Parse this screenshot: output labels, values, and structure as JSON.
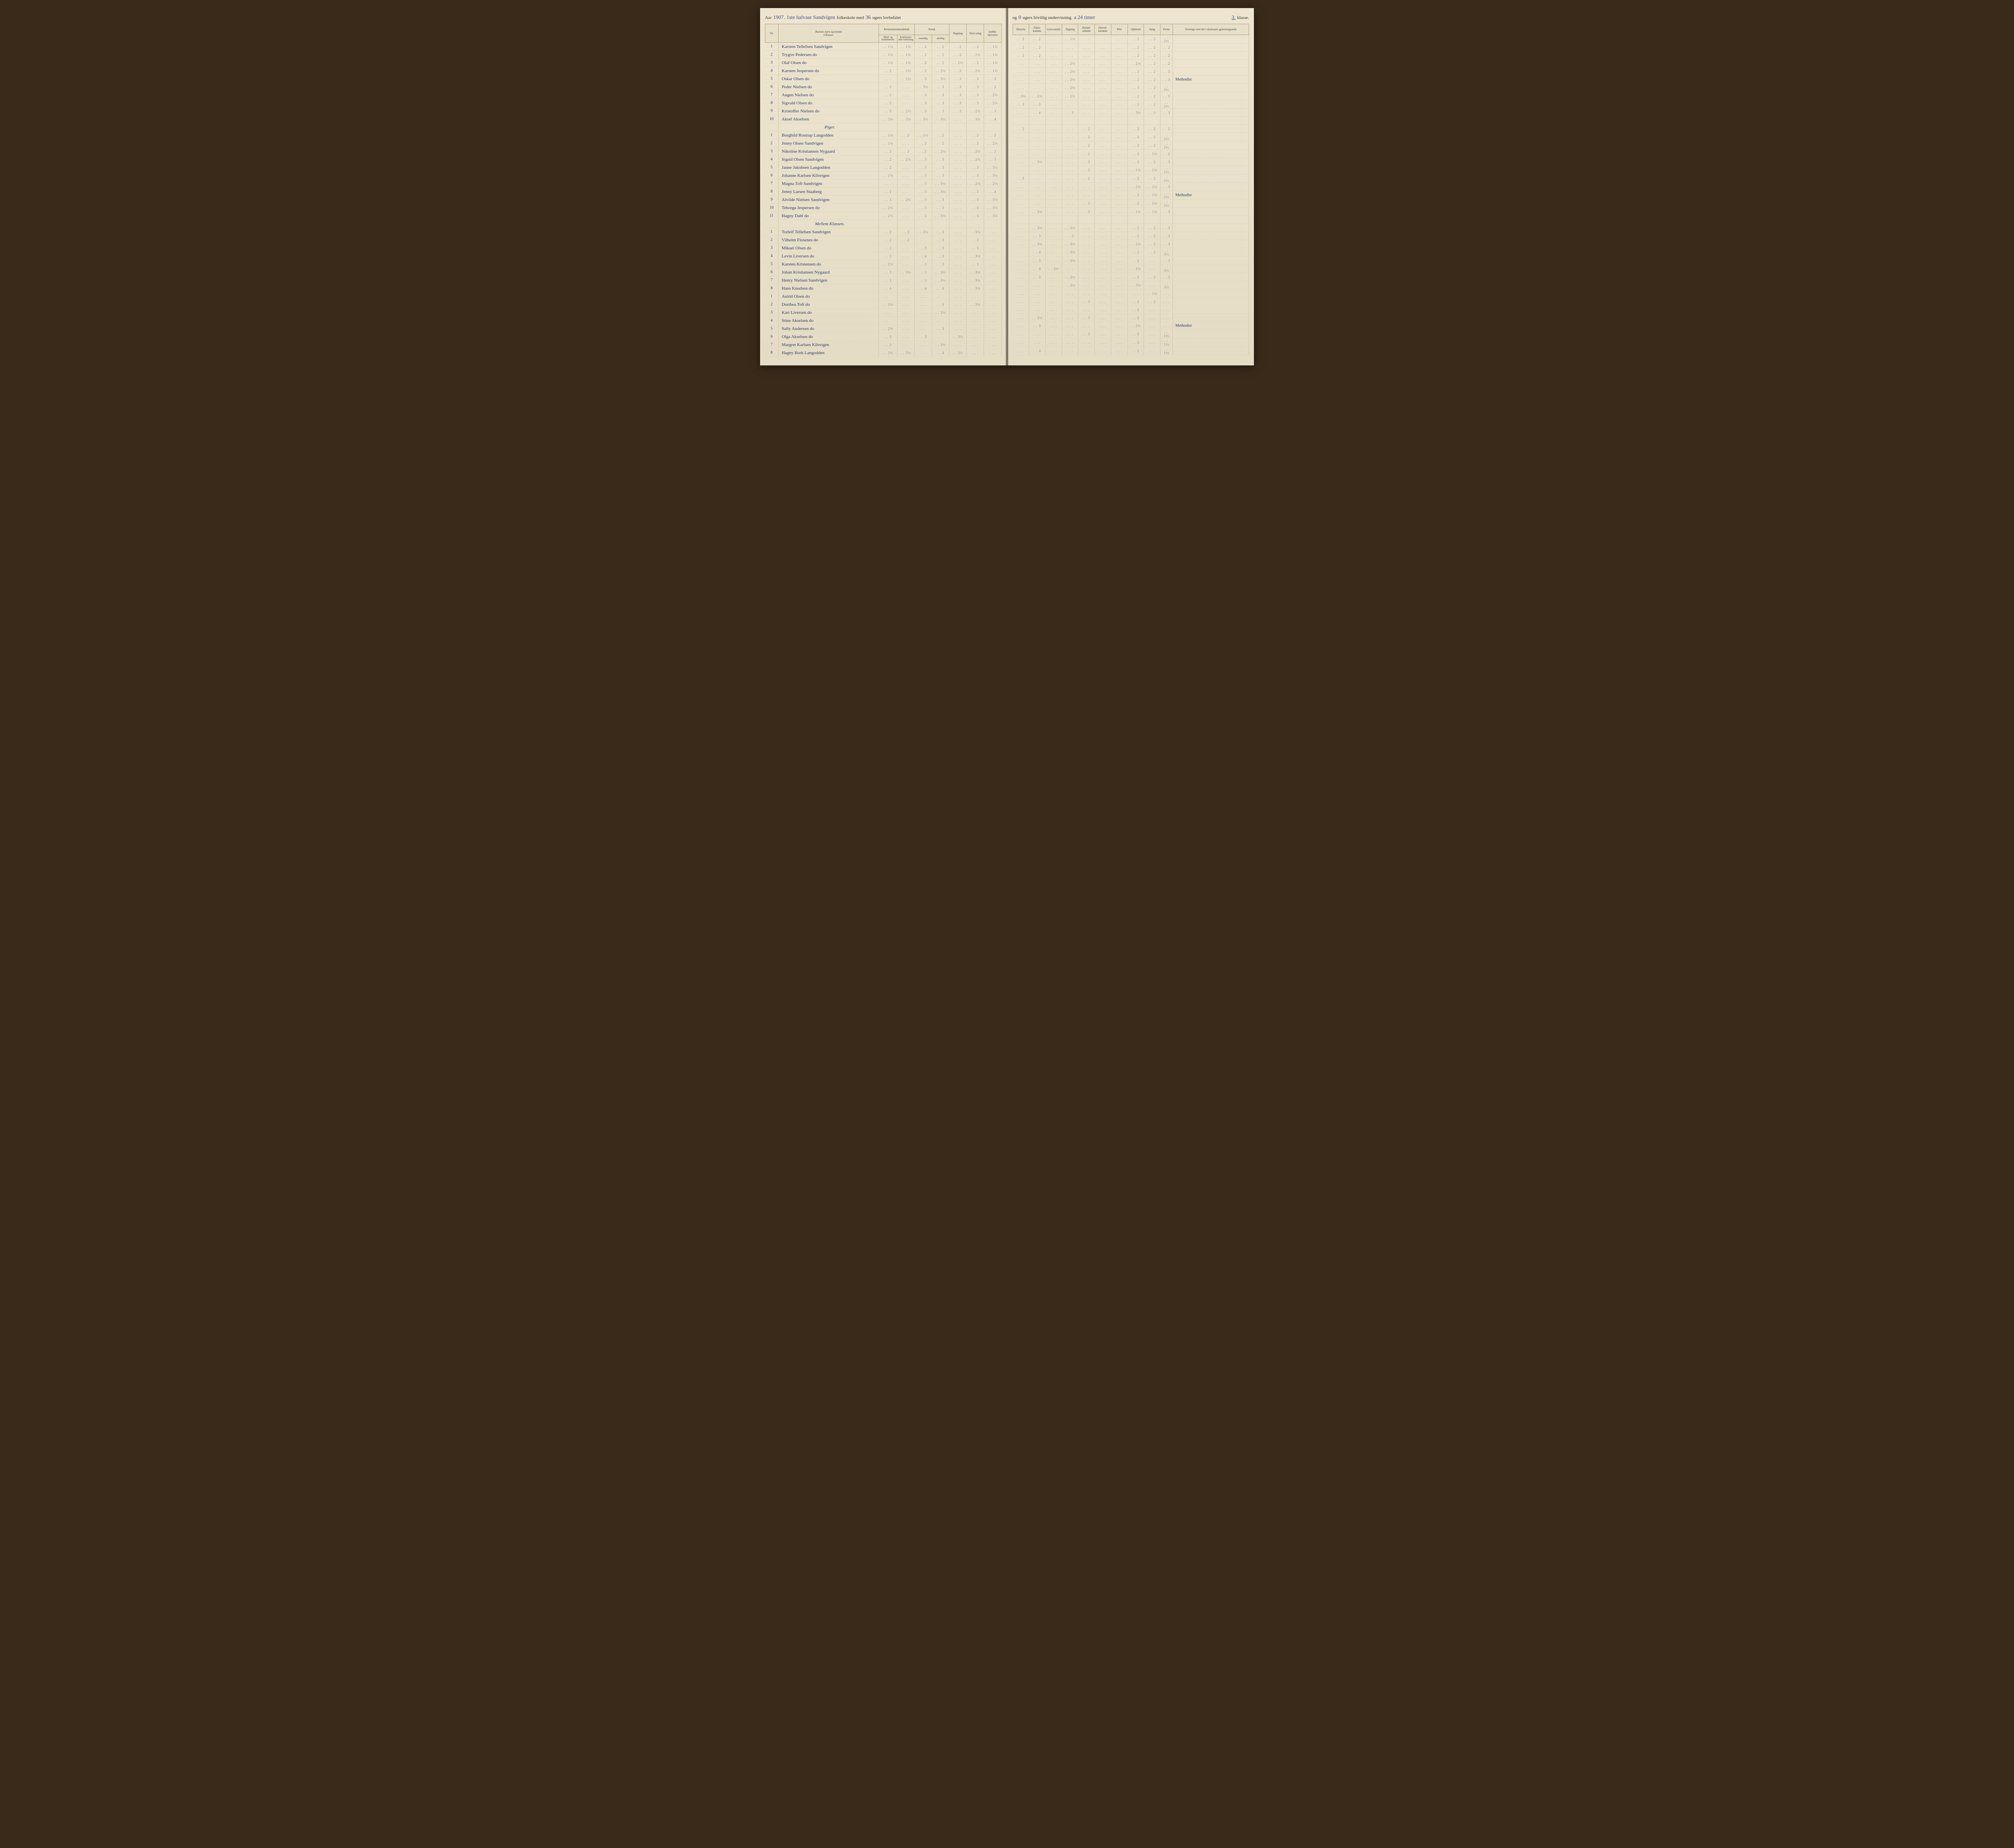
{
  "header": {
    "aar_label": "Aar",
    "aar_value": "1907.",
    "halvaar": "1ste halvaar Sandvigen",
    "skole_label": "folkeskole med",
    "uger_lov": "36",
    "lov_label": "ugers lovbefalet",
    "og": "og",
    "uger_friv": "0",
    "friv_label": "ugers frivillig undervisning.",
    "timer": "a 24 timer",
    "klasse_value": "3.",
    "klasse_label": "klasse."
  },
  "columns_left": {
    "nr": "Nr.",
    "navn": "Barnets navn og bosted",
    "klasse_sub": "3 Klasse.",
    "kristendom": "Kristendomskundskab",
    "bibel": "Bibel- og Kirkehistorie",
    "katekisme": "Katekismus eller forklaring",
    "norsk": "Norsk",
    "mundtlig": "mundtlig",
    "skriftlig": "skriftlig",
    "regning": "Regning",
    "skrivning": "Skriv-ning",
    "jordb": "Jordbe-skrivelse"
  },
  "columns_right": {
    "historie": "Historie",
    "natur": "Natur-kundsk.",
    "gym": "Gym-nastik",
    "tegning": "Tegning",
    "haand": "Haand-arbeide",
    "hoved": "Hoved-karakter",
    "flid": "Flid",
    "opforsel": "Opførsel",
    "sang": "Sang",
    "evner": "Evner",
    "oversigt": "Oversigt over det i skoleaaret gjennemgaaede"
  },
  "sections": [
    {
      "label": "",
      "rows": [
        {
          "nr": "1",
          "name": "Karsten Tellefsen Sandvigen",
          "g": [
            "1½",
            "1½",
            "2",
            "2",
            "2",
            "2",
            "1½"
          ],
          "r": [
            "2",
            "2",
            "",
            "1½",
            "",
            "",
            "",
            "2",
            "2",
            "2½",
            "2",
            ""
          ]
        },
        {
          "nr": "2",
          "name": "Trygve Pedersen          do",
          "g": [
            "1½",
            "1½",
            "2",
            "2",
            "2",
            "1½",
            "1½"
          ],
          "r": [
            "2",
            "2",
            "",
            "",
            "",
            "",
            "",
            "2",
            "2",
            "2",
            "2½",
            ""
          ]
        },
        {
          "nr": "3",
          "name": "Olaf Olsen               do",
          "g": [
            "1½",
            "1½",
            "2",
            "2",
            "1½",
            "2",
            "1½"
          ],
          "r": [
            "2",
            "2",
            "",
            "",
            "",
            "",
            "",
            "2",
            "2",
            "2",
            "2",
            ""
          ]
        },
        {
          "nr": "4",
          "name": "Karsten Jespersen        do",
          "g": [
            "2",
            "2½",
            "2",
            "2½",
            "2",
            "2½",
            "1½"
          ],
          "r": [
            "",
            "",
            "",
            "2½",
            "",
            "",
            "",
            "2½",
            "2",
            "2",
            "2",
            ""
          ]
        },
        {
          "nr": "5",
          "name": "Oskar Olsen              do",
          "g": [
            "",
            "2½",
            "3",
            "3½",
            "3",
            "3",
            "3"
          ],
          "r": [
            "",
            "",
            "",
            "2½",
            "",
            "",
            "",
            "2",
            "2",
            "3",
            "3",
            ""
          ]
        },
        {
          "nr": "6",
          "name": "Peder Nielsen            do",
          "g": [
            "2",
            "",
            "3½",
            "3",
            "3",
            "3",
            "2"
          ],
          "r": [
            "",
            "",
            "",
            "2½",
            "",
            "",
            "",
            "2",
            "2",
            "3",
            "2½",
            "Methodist"
          ]
        },
        {
          "nr": "7",
          "name": "Angen Nielsen            do",
          "g": [
            "2",
            "",
            "3",
            "3",
            "3",
            "3",
            "2½"
          ],
          "r": [
            "",
            "",
            "",
            "2½",
            "",
            "",
            "",
            "3",
            "2",
            "2½",
            "2½",
            ""
          ]
        },
        {
          "nr": "8",
          "name": "Sigvald Olsen            do",
          "g": [
            "2",
            "",
            "3",
            "3",
            "3",
            "3",
            "2½"
          ],
          "r": [
            "3½",
            "2½",
            "",
            "2½",
            "",
            "",
            "",
            "2",
            "2",
            "3",
            "3",
            ""
          ]
        },
        {
          "nr": "9",
          "name": "Kristoffer Nielsen       do",
          "g": [
            "3",
            "2½",
            "3",
            "3",
            "3",
            "2½",
            "3"
          ],
          "r": [
            "3",
            "3",
            "",
            "",
            "",
            "",
            "",
            "2",
            "2",
            "2½",
            "2½",
            ""
          ]
        },
        {
          "nr": "10",
          "name": "Aksel Akselsen",
          "g": [
            "3½",
            "3½",
            "3½",
            "3½",
            "",
            "3½",
            "4"
          ],
          "r": [
            "",
            "4",
            "",
            "3",
            "",
            "",
            "",
            "3½",
            "3",
            "3",
            "3",
            ""
          ]
        }
      ]
    },
    {
      "label": "Piger.",
      "rows": [
        {
          "nr": "1",
          "name": "Borghild Rostrup Langodden",
          "g": [
            "1½",
            "2",
            "1½",
            "2",
            "",
            "2",
            "2"
          ],
          "r": [
            "2",
            "",
            "",
            "",
            "2",
            "",
            "",
            "2",
            "2",
            "2",
            "2",
            ""
          ]
        },
        {
          "nr": "2",
          "name": "Jenny Olsen Sandvigen",
          "g": [
            "1½",
            "",
            "2",
            "2",
            "",
            "2",
            "2½"
          ],
          "r": [
            "",
            "",
            "",
            "",
            "2",
            "",
            "",
            "2",
            "2",
            "2½",
            "3",
            ""
          ]
        },
        {
          "nr": "3",
          "name": "Nikoline Kristiansen Nygaard",
          "g": [
            "2",
            "2",
            "2",
            "2½",
            "",
            "2½",
            "2"
          ],
          "r": [
            "",
            "",
            "",
            "",
            "2",
            "",
            "",
            "2",
            "2",
            "2½",
            "3",
            ""
          ]
        },
        {
          "nr": "4",
          "name": "Sigrid Olsen Sandvigen",
          "g": [
            "2",
            "2½",
            "3",
            "3",
            "",
            "2½",
            "3"
          ],
          "r": [
            "",
            "",
            "",
            "",
            "2",
            "",
            "",
            "2",
            "1½",
            "2",
            "2",
            ""
          ]
        },
        {
          "nr": "5",
          "name": "Janne Jakobsen Langodden",
          "g": [
            "2",
            "",
            "3",
            "3",
            "",
            "3",
            "3½"
          ],
          "r": [
            "",
            "3½",
            "",
            "",
            "3",
            "",
            "",
            "2",
            "2",
            "3",
            "2½",
            ""
          ]
        },
        {
          "nr": "6",
          "name": "Johanne Karlsen Kilsvigen",
          "g": [
            "1½",
            "",
            "3",
            "3",
            "",
            "3",
            "3½"
          ],
          "r": [
            "",
            "",
            "",
            "",
            "2",
            "",
            "",
            "1½",
            "1½",
            "2½",
            "2",
            ""
          ]
        },
        {
          "nr": "7",
          "name": "Magna Toft Sandvigen",
          "g": [
            "",
            "",
            "3",
            "3½",
            "",
            "2½",
            "2½"
          ],
          "r": [
            "3",
            "",
            "",
            "",
            "2",
            "",
            "",
            "2",
            "2",
            "2½",
            "2½",
            ""
          ]
        },
        {
          "nr": "8",
          "name": "Jenny Larsen Staaberg",
          "g": [
            "2",
            "",
            "3",
            "3½",
            "",
            "3",
            "4"
          ],
          "r": [
            "",
            "",
            "",
            "",
            "",
            "",
            "",
            "2½",
            "2½",
            "3",
            "2½",
            ""
          ]
        },
        {
          "nr": "9",
          "name": "Alvilde Nielsen Sandvigen",
          "g": [
            "3",
            "2½",
            "3",
            "3",
            "",
            "3",
            "3½"
          ],
          "r": [
            "",
            "",
            "",
            "",
            "",
            "",
            "",
            "2",
            "1½",
            "2½",
            "2½",
            "Methodist"
          ]
        },
        {
          "nr": "10",
          "name": "Teborga Jespersen    do",
          "g": [
            "2½",
            "",
            "3",
            "3",
            "",
            "3",
            "3½"
          ],
          "r": [
            "",
            "",
            "",
            "",
            "3",
            "",
            "",
            "2",
            "1½",
            "2½",
            "2½",
            ""
          ]
        },
        {
          "nr": "11",
          "name": "Hagny Dahl           do",
          "g": [
            "2½",
            "",
            "3",
            "3½",
            "",
            "3",
            "3½"
          ],
          "r": [
            "",
            "3½",
            "",
            "",
            "3",
            "",
            "",
            "1½",
            "1½",
            "3",
            "3",
            ""
          ]
        }
      ]
    },
    {
      "label": "Mellem Klassen.",
      "rows": [
        {
          "nr": "1",
          "name": "Torleif Tellefsen Sandvigen",
          "g": [
            "2",
            "2",
            "3½",
            "3",
            "",
            "3½",
            ""
          ],
          "r": [
            "",
            "3½",
            "",
            "3½",
            "",
            "",
            "",
            "2",
            "2",
            "3",
            "2½",
            ""
          ]
        },
        {
          "nr": "2",
          "name": "Vilhelm Flosenes     do",
          "g": [
            "2",
            "2",
            "",
            "3",
            "",
            "3",
            ""
          ],
          "r": [
            "",
            "3",
            "",
            "3",
            "",
            "",
            "",
            "2",
            "2",
            "3",
            "2",
            ""
          ]
        },
        {
          "nr": "3",
          "name": "Mikael Olsen         do",
          "g": [
            "2",
            "",
            "3",
            "3",
            "",
            "3",
            ""
          ],
          "r": [
            "",
            "3½",
            "",
            "3½",
            "",
            "",
            "",
            "2½",
            "2",
            "3",
            "2½",
            ""
          ]
        },
        {
          "nr": "4",
          "name": "Levin Liversen       do",
          "g": [
            "3",
            "",
            "4",
            "3",
            "",
            "3½",
            ""
          ],
          "r": [
            "",
            "4",
            "",
            "3½",
            "",
            "",
            "",
            "2",
            "2",
            "3½",
            "3½",
            ""
          ]
        },
        {
          "nr": "5",
          "name": "Karsten Kristensen   do",
          "g": [
            "2½",
            "",
            "3",
            "3",
            "",
            "3",
            ""
          ],
          "r": [
            "",
            "3",
            "",
            "3½",
            "",
            "",
            "",
            "2",
            "",
            "3",
            "2½",
            ""
          ]
        },
        {
          "nr": "6",
          "name": "Johan Kristiansen Nygaard",
          "g": [
            "3",
            "3½",
            "3",
            "3½",
            "",
            "3½",
            ""
          ],
          "r": [
            "",
            "4",
            "3½",
            "",
            "",
            "",
            "",
            "2½",
            "",
            "3½",
            "3½",
            ""
          ]
        },
        {
          "nr": "7",
          "name": "Henry Nielsen Sandvigen",
          "g": [
            "3",
            "",
            "3",
            "3½",
            "",
            "3½",
            ""
          ],
          "r": [
            "",
            "3",
            "",
            "3½",
            "",
            "",
            "",
            "2",
            "2",
            "3",
            "2½",
            ""
          ]
        },
        {
          "nr": "8",
          "name": "Hans Knudsen         do",
          "g": [
            "4",
            "",
            "4",
            "4",
            "",
            "3½",
            ""
          ],
          "r": [
            "",
            "",
            "",
            "3½",
            "",
            "",
            "",
            "3½",
            "",
            "3½",
            "3",
            ""
          ]
        },
        {
          "nr": "1",
          "name": "Astrid Olsen         do",
          "g": [
            "",
            "",
            "",
            "",
            "",
            "",
            ""
          ],
          "r": [
            "",
            "",
            "",
            "",
            "",
            "",
            "",
            "",
            "1½",
            "",
            "6",
            ""
          ]
        },
        {
          "nr": "2",
          "name": "Dorthea Toft         do",
          "g": [
            "3½",
            "",
            "",
            "3",
            "",
            "3½",
            ""
          ],
          "r": [
            "",
            "",
            "",
            "",
            "3",
            "",
            "",
            "2",
            "2",
            "",
            "2½",
            ""
          ]
        },
        {
          "nr": "3",
          "name": "Kari Liversen        do",
          "g": [
            "",
            "",
            "",
            "3½",
            "",
            "",
            ""
          ],
          "r": [
            "",
            "",
            "",
            "",
            "",
            "",
            "",
            "2",
            "",
            "",
            "3½",
            ""
          ]
        },
        {
          "nr": "4",
          "name": "Stine Akselsen       do",
          "g": [
            "",
            "",
            "",
            "",
            "",
            "",
            ""
          ],
          "r": [
            "",
            "3½",
            "",
            "",
            "3",
            "",
            "",
            "2",
            "",
            "",
            "2½",
            ""
          ]
        },
        {
          "nr": "5",
          "name": "Sally Andersen       do",
          "g": [
            "2½",
            "",
            "",
            "3",
            "",
            "",
            ""
          ],
          "r": [
            "",
            "3",
            "",
            "",
            "",
            "",
            "",
            "2½",
            "",
            "",
            "2",
            "Methodist"
          ]
        },
        {
          "nr": "6",
          "name": "Olga Akselsen        do",
          "g": [
            "3",
            "",
            "3",
            "",
            "3½",
            "",
            ""
          ],
          "r": [
            "",
            "",
            "",
            "",
            "3",
            "",
            "",
            "2",
            "",
            "1½",
            "3",
            ""
          ]
        },
        {
          "nr": "7",
          "name": "Margret Karlsen Kilsvigen",
          "g": [
            "3",
            "",
            "",
            "3½",
            "",
            "",
            ""
          ],
          "r": [
            "",
            "",
            "",
            "",
            "",
            "",
            "",
            "2",
            "",
            "1½",
            "",
            ""
          ]
        },
        {
          "nr": "8",
          "name": "Hagny Bork  Langodden",
          "g": [
            "3½",
            "3½",
            "",
            "4",
            "3½",
            "",
            ""
          ],
          "r": [
            "",
            "4",
            "",
            "",
            "",
            "",
            "",
            "2",
            "",
            "1½",
            "3",
            ""
          ]
        }
      ]
    }
  ]
}
